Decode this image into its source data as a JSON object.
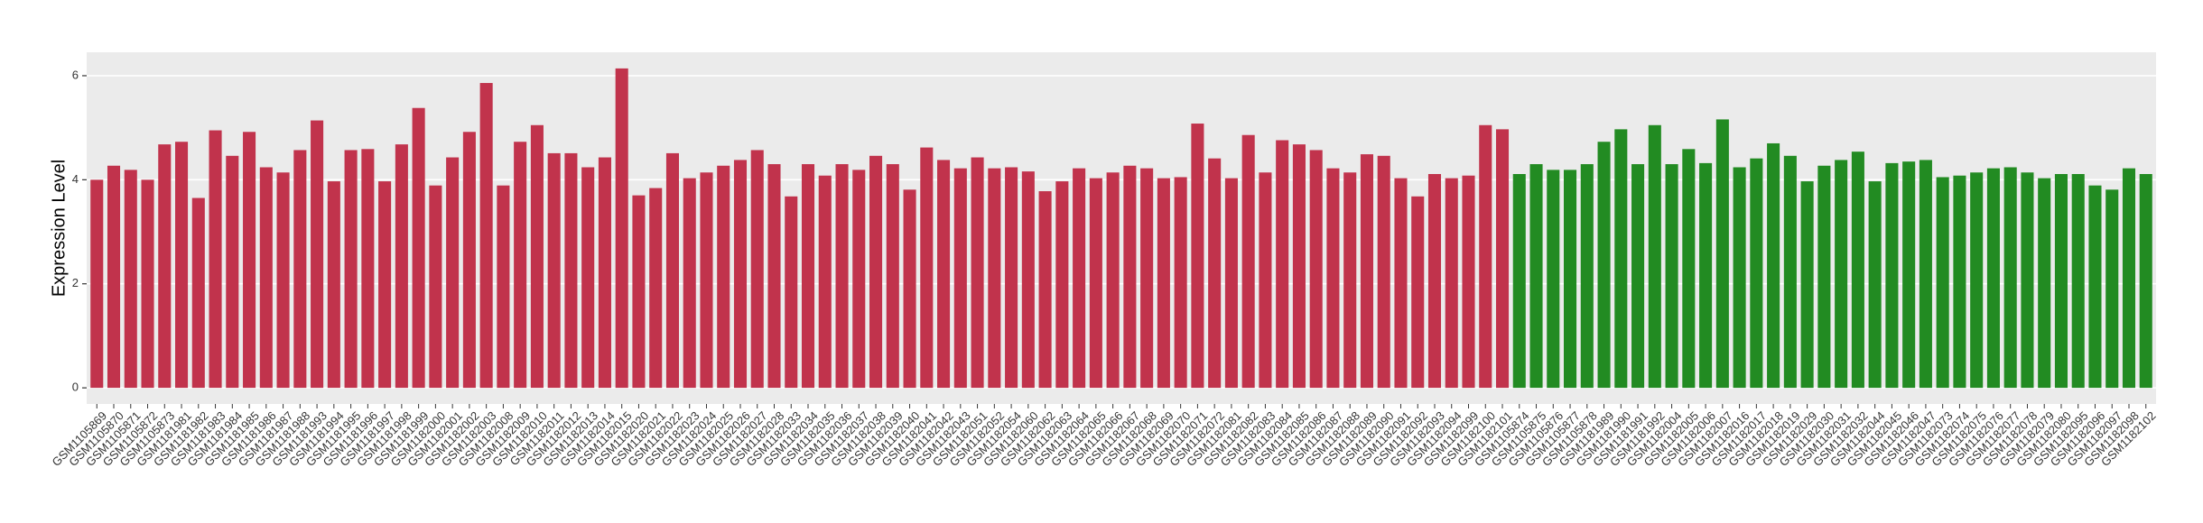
{
  "chart_data": {
    "type": "bar",
    "y_label": "Expression Level",
    "categories": [
      "GSM1105869",
      "GSM1105870",
      "GSM1105871",
      "GSM1105872",
      "GSM1105873",
      "GSM1181981",
      "GSM1181982",
      "GSM1181983",
      "GSM1181984",
      "GSM1181985",
      "GSM1181986",
      "GSM1181987",
      "GSM1181988",
      "GSM1181993",
      "GSM1181994",
      "GSM1181995",
      "GSM1181996",
      "GSM1181997",
      "GSM1181998",
      "GSM1181999",
      "GSM1182000",
      "GSM1182001",
      "GSM1182002",
      "GSM1182003",
      "GSM1182008",
      "GSM1182009",
      "GSM1182010",
      "GSM1182011",
      "GSM1182012",
      "GSM1182013",
      "GSM1182014",
      "GSM1182015",
      "GSM1182020",
      "GSM1182021",
      "GSM1182022",
      "GSM1182023",
      "GSM1182024",
      "GSM1182025",
      "GSM1182026",
      "GSM1182027",
      "GSM1182028",
      "GSM1182033",
      "GSM1182034",
      "GSM1182035",
      "GSM1182036",
      "GSM1182037",
      "GSM1182038",
      "GSM1182039",
      "GSM1182040",
      "GSM1182041",
      "GSM1182042",
      "GSM1182043",
      "GSM1182051",
      "GSM1182052",
      "GSM1182054",
      "GSM1182060",
      "GSM1182062",
      "GSM1182063",
      "GSM1182064",
      "GSM1182065",
      "GSM1182066",
      "GSM1182067",
      "GSM1182068",
      "GSM1182069",
      "GSM1182070",
      "GSM1182071",
      "GSM1182072",
      "GSM1182081",
      "GSM1182082",
      "GSM1182083",
      "GSM1182084",
      "GSM1182085",
      "GSM1182086",
      "GSM1182087",
      "GSM1182088",
      "GSM1182089",
      "GSM1182090",
      "GSM1182091",
      "GSM1182092",
      "GSM1182093",
      "GSM1182094",
      "GSM1182099",
      "GSM1182100",
      "GSM1182101",
      "GSM1105874",
      "GSM1105875",
      "GSM1105876",
      "GSM1105877",
      "GSM1105878",
      "GSM1181989",
      "GSM1181990",
      "GSM1181991",
      "GSM1181992",
      "GSM1182004",
      "GSM1182005",
      "GSM1182006",
      "GSM1182007",
      "GSM1182016",
      "GSM1182017",
      "GSM1182018",
      "GSM1182019",
      "GSM1182029",
      "GSM1182030",
      "GSM1182031",
      "GSM1182032",
      "GSM1182044",
      "GSM1182045",
      "GSM1182046",
      "GSM1182047",
      "GSM1182073",
      "GSM1182074",
      "GSM1182075",
      "GSM1182076",
      "GSM1182077",
      "GSM1182078",
      "GSM1182079",
      "GSM1182080",
      "GSM1182095",
      "GSM1182096",
      "GSM1182097",
      "GSM1182098",
      "GSM1182102"
    ],
    "values": [
      4.0,
      4.27,
      4.19,
      4.0,
      4.68,
      4.73,
      3.65,
      4.95,
      4.46,
      4.92,
      4.24,
      4.14,
      4.57,
      5.14,
      3.97,
      4.57,
      4.59,
      3.97,
      4.68,
      5.38,
      3.89,
      4.43,
      4.92,
      5.86,
      3.89,
      4.73,
      5.05,
      4.51,
      4.51,
      4.24,
      4.43,
      6.14,
      3.7,
      3.84,
      4.51,
      4.03,
      4.14,
      4.27,
      4.38,
      4.57,
      4.3,
      3.68,
      4.3,
      4.08,
      4.3,
      4.19,
      4.46,
      4.3,
      3.81,
      4.62,
      4.38,
      4.22,
      4.43,
      4.22,
      4.24,
      4.16,
      3.78,
      3.97,
      4.22,
      4.03,
      4.14,
      4.27,
      4.22,
      4.03,
      4.05,
      5.08,
      4.41,
      4.03,
      4.86,
      4.14,
      4.76,
      4.68,
      4.57,
      4.22,
      4.14,
      4.49,
      4.46,
      4.03,
      3.68,
      4.11,
      4.03,
      4.08,
      5.05,
      4.97,
      4.11,
      4.3,
      4.19,
      4.19,
      4.3,
      4.73,
      4.97,
      4.3,
      5.05,
      4.3,
      4.59,
      4.32,
      5.16,
      4.24,
      4.41,
      4.7,
      4.46,
      3.97,
      4.27,
      4.38,
      4.54,
      3.97,
      4.32,
      4.35,
      4.38,
      4.05,
      4.08,
      4.14,
      4.22,
      4.24,
      4.14,
      4.03,
      4.11,
      4.11,
      3.89,
      3.81,
      4.22,
      4.11
    ],
    "colors": [
      "#c1334c",
      "#c1334c",
      "#c1334c",
      "#c1334c",
      "#c1334c",
      "#c1334c",
      "#c1334c",
      "#c1334c",
      "#c1334c",
      "#c1334c",
      "#c1334c",
      "#c1334c",
      "#c1334c",
      "#c1334c",
      "#c1334c",
      "#c1334c",
      "#c1334c",
      "#c1334c",
      "#c1334c",
      "#c1334c",
      "#c1334c",
      "#c1334c",
      "#c1334c",
      "#c1334c",
      "#c1334c",
      "#c1334c",
      "#c1334c",
      "#c1334c",
      "#c1334c",
      "#c1334c",
      "#c1334c",
      "#c1334c",
      "#c1334c",
      "#c1334c",
      "#c1334c",
      "#c1334c",
      "#c1334c",
      "#c1334c",
      "#c1334c",
      "#c1334c",
      "#c1334c",
      "#c1334c",
      "#c1334c",
      "#c1334c",
      "#c1334c",
      "#c1334c",
      "#c1334c",
      "#c1334c",
      "#c1334c",
      "#c1334c",
      "#c1334c",
      "#c1334c",
      "#c1334c",
      "#c1334c",
      "#c1334c",
      "#c1334c",
      "#c1334c",
      "#c1334c",
      "#c1334c",
      "#c1334c",
      "#c1334c",
      "#c1334c",
      "#c1334c",
      "#c1334c",
      "#c1334c",
      "#c1334c",
      "#c1334c",
      "#c1334c",
      "#c1334c",
      "#c1334c",
      "#c1334c",
      "#c1334c",
      "#c1334c",
      "#c1334c",
      "#c1334c",
      "#c1334c",
      "#c1334c",
      "#c1334c",
      "#c1334c",
      "#c1334c",
      "#c1334c",
      "#c1334c",
      "#c1334c",
      "#c1334c",
      "#228b22",
      "#228b22",
      "#228b22",
      "#228b22",
      "#228b22",
      "#228b22",
      "#228b22",
      "#228b22",
      "#228b22",
      "#228b22",
      "#228b22",
      "#228b22",
      "#228b22",
      "#228b22",
      "#228b22",
      "#228b22",
      "#228b22",
      "#228b22",
      "#228b22",
      "#228b22",
      "#228b22",
      "#228b22",
      "#228b22",
      "#228b22",
      "#228b22",
      "#228b22",
      "#228b22",
      "#228b22",
      "#228b22",
      "#228b22",
      "#228b22",
      "#228b22",
      "#228b22",
      "#228b22",
      "#228b22",
      "#228b22",
      "#228b22",
      "#228b22"
    ],
    "ylim": [
      -0.31,
      6.45
    ],
    "yticks": [
      0,
      2,
      4,
      6
    ],
    "grid": true
  }
}
